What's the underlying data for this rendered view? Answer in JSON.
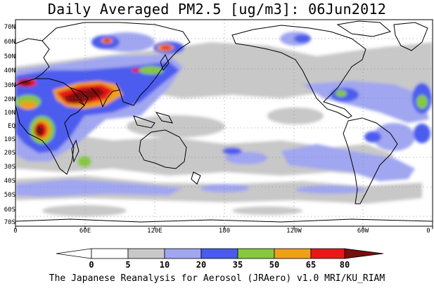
{
  "title": "Daily Averaged PM2.5 [ug/m3]: 06Jun2012",
  "lat_labels": [
    "70N",
    "60N",
    "50N",
    "40N",
    "30N",
    "20N",
    "10N",
    "EQ",
    "10S",
    "20S",
    "30S",
    "40S",
    "50S",
    "60S",
    "70S"
  ],
  "lon_labels": [
    "0",
    "60E",
    "120E",
    "180",
    "120W",
    "60W",
    "0"
  ],
  "colorbar": {
    "levels": [
      "0",
      "5",
      "10",
      "20",
      "35",
      "50",
      "65",
      "80"
    ],
    "colors": [
      "#ffffff",
      "#c8c8c8",
      "#a0a6f0",
      "#4b5bee",
      "#88c83c",
      "#f0a018",
      "#e81818",
      "#7a0e0e"
    ]
  },
  "footer": "The Japanese Reanalysis for Aerosol (JRAero) v1.0 MRI/KU_RIAM"
}
